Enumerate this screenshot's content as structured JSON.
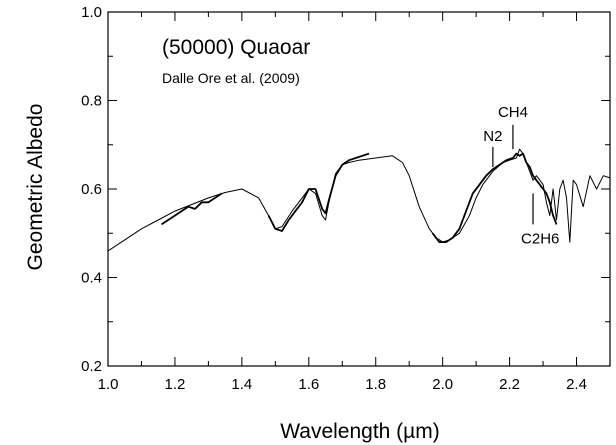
{
  "chart_data": {
    "type": "line",
    "title": "(50000) Quaoar",
    "subtitle": "Dalle Ore et al. (2009)",
    "xlabel": "Wavelength (µm)",
    "ylabel": "Geometric Albedo",
    "xlim": [
      1.0,
      2.5
    ],
    "ylim": [
      0.2,
      1.0
    ],
    "xticks": [
      1.0,
      1.2,
      1.4,
      1.6,
      1.8,
      2.0,
      2.2,
      2.4
    ],
    "xtick_labels": [
      "1.0",
      "1.2",
      "1.4",
      "1.6",
      "1.8",
      "2.0",
      "2.2",
      "2.4"
    ],
    "yticks": [
      0.2,
      0.4,
      0.6,
      0.8,
      1.0
    ],
    "ytick_labels": [
      "0.2",
      "0.4",
      "0.6",
      "0.8",
      "1.0"
    ],
    "grid": false,
    "series": [
      {
        "style": "model",
        "x": [
          1.0,
          1.05,
          1.1,
          1.15,
          1.2,
          1.25,
          1.3,
          1.35,
          1.4,
          1.45,
          1.48,
          1.5,
          1.52,
          1.55,
          1.58,
          1.6,
          1.62,
          1.64,
          1.65,
          1.66,
          1.68,
          1.7,
          1.72,
          1.75,
          1.8,
          1.85,
          1.88,
          1.9,
          1.93,
          1.96,
          1.98,
          2.0,
          2.02,
          2.05,
          2.08,
          2.1,
          2.12,
          2.15,
          2.18,
          2.2,
          2.22,
          2.23,
          2.24,
          2.25,
          2.26,
          2.27,
          2.28,
          2.3,
          2.31,
          2.32,
          2.33,
          2.34,
          2.35,
          2.36,
          2.37,
          2.38,
          2.39,
          2.4,
          2.42,
          2.44,
          2.46,
          2.48,
          2.5
        ],
        "y": [
          0.46,
          0.485,
          0.51,
          0.53,
          0.55,
          0.565,
          0.58,
          0.592,
          0.6,
          0.58,
          0.54,
          0.51,
          0.515,
          0.55,
          0.58,
          0.6,
          0.59,
          0.54,
          0.53,
          0.57,
          0.635,
          0.655,
          0.66,
          0.665,
          0.67,
          0.675,
          0.66,
          0.63,
          0.56,
          0.51,
          0.49,
          0.48,
          0.485,
          0.5,
          0.54,
          0.58,
          0.61,
          0.64,
          0.66,
          0.665,
          0.67,
          0.69,
          0.68,
          0.66,
          0.64,
          0.62,
          0.63,
          0.61,
          0.57,
          0.54,
          0.6,
          0.53,
          0.6,
          0.62,
          0.58,
          0.48,
          0.62,
          0.61,
          0.56,
          0.63,
          0.6,
          0.63,
          0.625
        ]
      },
      {
        "style": "observed",
        "x": [
          1.16,
          1.18,
          1.2,
          1.22,
          1.24,
          1.26,
          1.28,
          1.3,
          1.32,
          1.34,
          1.48,
          1.5,
          1.52,
          1.54,
          1.56,
          1.58,
          1.6,
          1.62,
          1.64,
          1.65,
          1.66,
          1.68,
          1.7,
          1.72,
          1.74,
          1.76,
          1.78,
          1.97,
          1.99,
          2.01,
          2.03,
          2.05,
          2.07,
          2.09,
          2.11,
          2.13,
          2.15,
          2.17,
          2.19,
          2.21,
          2.22,
          2.23,
          2.24,
          2.25,
          2.26,
          2.27,
          2.28,
          2.29,
          2.3,
          2.31,
          2.32,
          2.33,
          2.34
        ],
        "y": [
          0.52,
          0.53,
          0.54,
          0.55,
          0.56,
          0.555,
          0.57,
          0.57,
          0.58,
          0.59,
          0.54,
          0.51,
          0.505,
          0.53,
          0.55,
          0.57,
          0.6,
          0.6,
          0.555,
          0.545,
          0.575,
          0.63,
          0.655,
          0.665,
          0.67,
          0.675,
          0.68,
          0.5,
          0.48,
          0.48,
          0.49,
          0.51,
          0.55,
          0.59,
          0.61,
          0.63,
          0.645,
          0.655,
          0.665,
          0.67,
          0.68,
          0.675,
          0.68,
          0.66,
          0.65,
          0.63,
          0.62,
          0.61,
          0.6,
          0.59,
          0.57,
          0.54,
          0.52
        ]
      }
    ],
    "annotations": [
      {
        "text": "N2",
        "x": 2.15,
        "line_from": 0.695,
        "line_to": 0.65
      },
      {
        "text": "CH4",
        "x": 2.21,
        "line_from": 0.745,
        "line_to": 0.69
      },
      {
        "text": "C2H6",
        "x": 2.27,
        "line_from": 0.59,
        "line_to": 0.52
      }
    ]
  }
}
